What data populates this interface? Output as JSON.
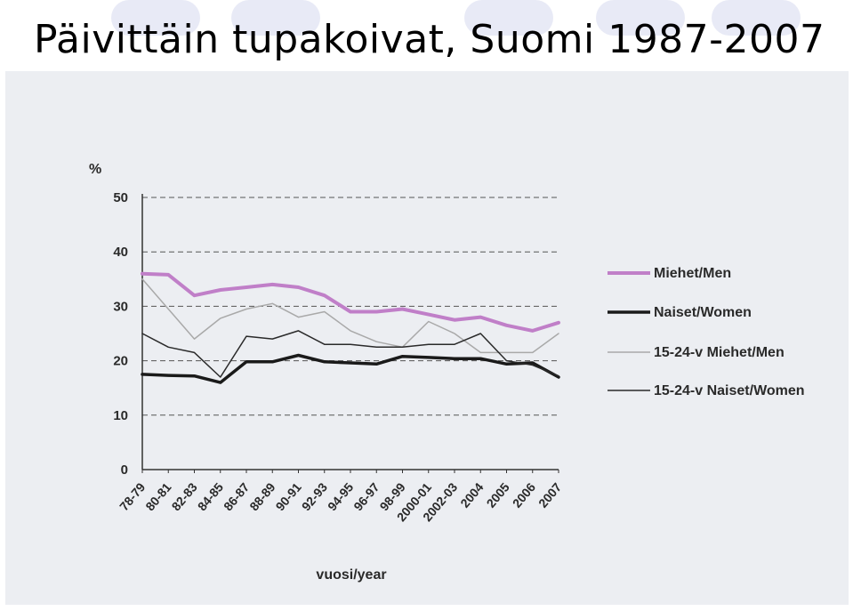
{
  "slide": {
    "title": "Päivittäin tupakoivat, Suomi 1987-2007"
  },
  "colors": {
    "background": "#ffffff",
    "scan": "#eceef2",
    "deco": "#d6d8ee"
  },
  "chart_data": {
    "type": "line",
    "title": "",
    "ylabel": "%",
    "xlabel": "vuosi/year",
    "ylim": [
      0,
      50
    ],
    "yticks": [
      0,
      10,
      20,
      30,
      40,
      50
    ],
    "grid": "dashed horizontal",
    "legend_position": "right",
    "categories": [
      "78-79",
      "80-81",
      "82-83",
      "84-85",
      "86-87",
      "88-89",
      "90-91",
      "92-93",
      "94-95",
      "96-97",
      "98-99",
      "2000-01",
      "2002-03",
      "2004",
      "2005",
      "2006",
      "2007"
    ],
    "series": [
      {
        "name": "Miehet/Men",
        "color": "#c07fc8",
        "width": 4,
        "values": [
          36,
          35.8,
          32,
          33,
          33.5,
          34,
          33.5,
          32,
          29,
          29,
          29.5,
          28.5,
          27.5,
          28,
          26.5,
          25.5,
          27
        ]
      },
      {
        "name": "Naiset/Women",
        "color": "#1a1a1a",
        "width": 3.5,
        "values": [
          17.5,
          17.3,
          17.2,
          16,
          19.8,
          19.8,
          21,
          19.8,
          19.6,
          19.4,
          20.8,
          20.6,
          20.4,
          20.4,
          19.4,
          19.6,
          17
        ]
      },
      {
        "name": "15-24-v Miehet/Men",
        "color": "#a9a9a9",
        "width": 1.5,
        "values": [
          35,
          29.5,
          24,
          27.8,
          29.5,
          30.5,
          28,
          29,
          25.5,
          23.5,
          22.5,
          27.2,
          25,
          21.5,
          21.5,
          21.5,
          25
        ]
      },
      {
        "name": "15-24-v Naiset/Women",
        "color": "#2a2a2a",
        "width": 1.5,
        "values": [
          25,
          22.5,
          21.5,
          17,
          24.5,
          24,
          25.5,
          23,
          23,
          22.5,
          22.5,
          23,
          23,
          25,
          20,
          19.2,
          17.2
        ]
      }
    ]
  }
}
